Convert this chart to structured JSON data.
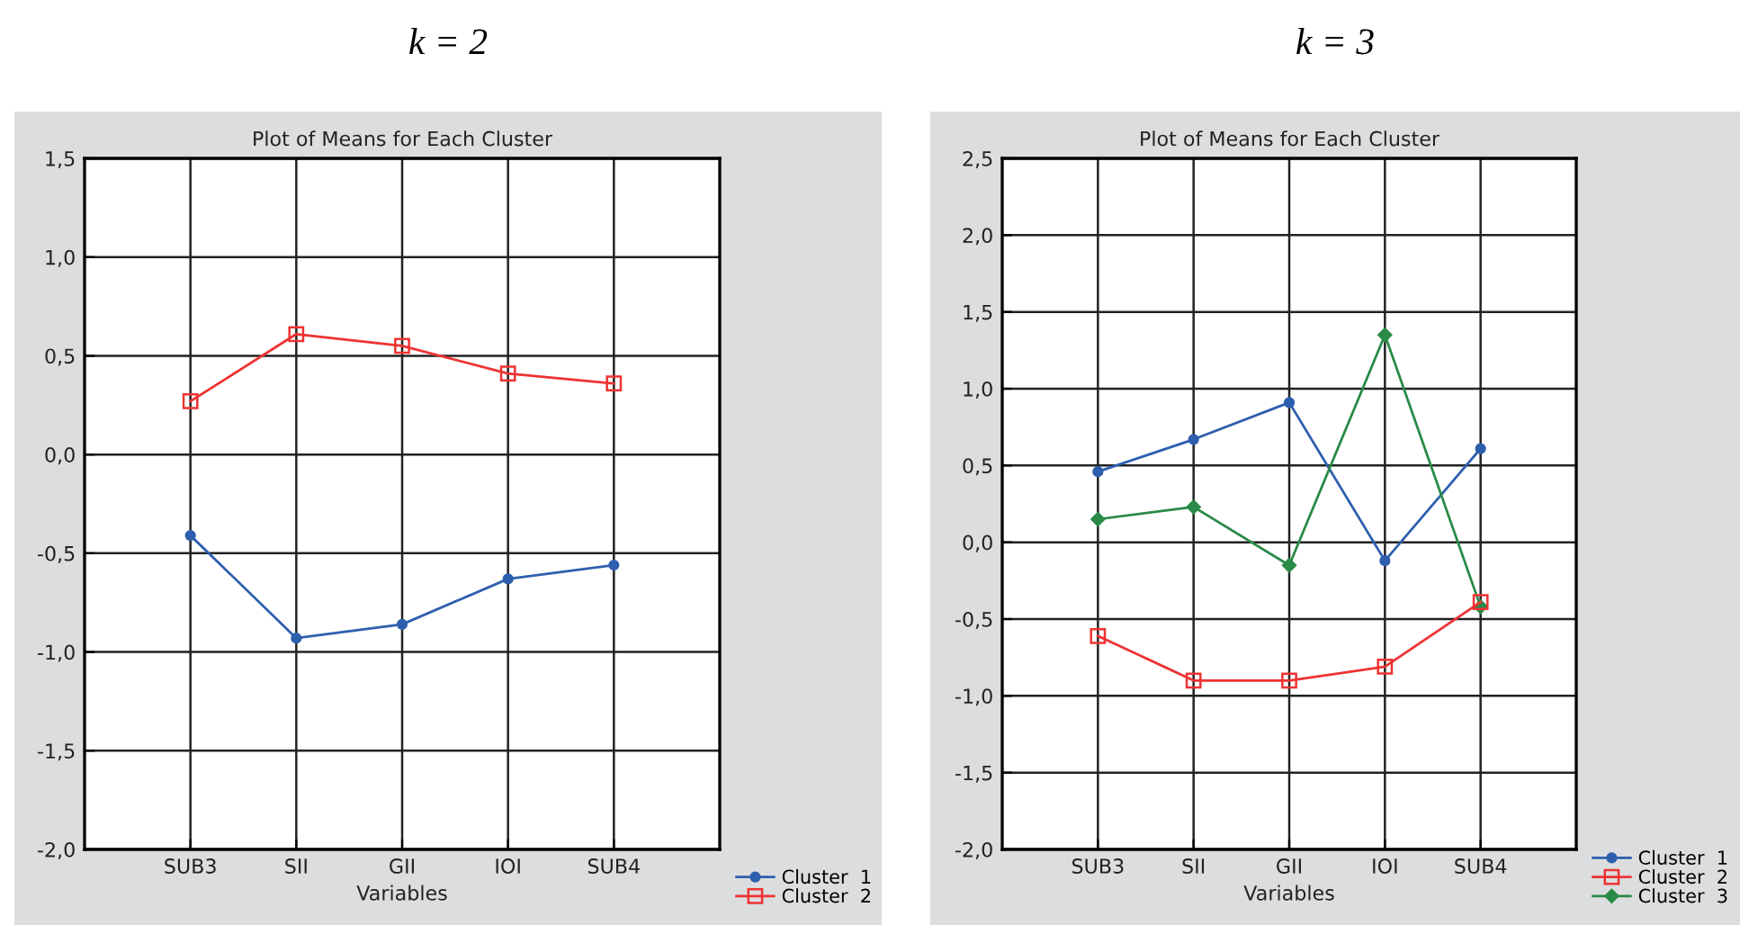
{
  "chart_data": [
    {
      "type": "line",
      "title": "k = 2",
      "subtitle": "Plot of Means for Each Cluster",
      "xlabel": "Variables",
      "categories": [
        "SUB3",
        "SII",
        "GII",
        "IOI",
        "SUB4"
      ],
      "series": [
        {
          "name": "Cluster  1",
          "color": "#2e5fae",
          "marker": "circle",
          "values": [
            -0.41,
            -0.93,
            -0.86,
            -0.63,
            -0.56
          ]
        },
        {
          "name": "Cluster  2",
          "color": "#ee3333",
          "marker": "square",
          "values": [
            0.27,
            0.61,
            0.55,
            0.41,
            0.36
          ]
        }
      ],
      "ylim": [
        -2.0,
        1.5
      ],
      "yticks": [
        {
          "value": -2.0,
          "label": "-2,0"
        },
        {
          "value": -1.5,
          "label": "-1,5"
        },
        {
          "value": -1.0,
          "label": "-1,0"
        },
        {
          "value": -0.5,
          "label": "-0,5"
        },
        {
          "value": 0.0,
          "label": "0,0"
        },
        {
          "value": 0.5,
          "label": "0,5"
        },
        {
          "value": 1.0,
          "label": "1,0"
        },
        {
          "value": 1.5,
          "label": "1,5"
        }
      ],
      "grid": true,
      "legend": "bottom right",
      "line_style": "solid"
    },
    {
      "type": "line",
      "title": "k = 3",
      "subtitle": "Plot of Means for Each Cluster",
      "xlabel": "Variables",
      "categories": [
        "SUB3",
        "SII",
        "GII",
        "IOI",
        "SUB4"
      ],
      "series": [
        {
          "name": "Cluster  1",
          "color": "#2e5fae",
          "marker": "circle",
          "values": [
            0.46,
            0.67,
            0.91,
            -0.12,
            0.61
          ]
        },
        {
          "name": "Cluster  2",
          "color": "#ee3333",
          "marker": "square",
          "values": [
            -0.61,
            -0.9,
            -0.9,
            -0.81,
            -0.39
          ]
        },
        {
          "name": "Cluster  3",
          "color": "#2a8a48",
          "marker": "diamond",
          "values": [
            0.15,
            0.23,
            -0.15,
            1.35,
            -0.42
          ]
        }
      ],
      "ylim": [
        -2.0,
        2.5
      ],
      "yticks": [
        {
          "value": -2.0,
          "label": "-2,0"
        },
        {
          "value": -1.5,
          "label": "-1,5"
        },
        {
          "value": -1.0,
          "label": "-1,0"
        },
        {
          "value": -0.5,
          "label": "-0,5"
        },
        {
          "value": 0.0,
          "label": "0,0"
        },
        {
          "value": 0.5,
          "label": "0,5"
        },
        {
          "value": 1.0,
          "label": "1,0"
        },
        {
          "value": 1.5,
          "label": "1,5"
        },
        {
          "value": 2.0,
          "label": "2,0"
        },
        {
          "value": 2.5,
          "label": "2,5"
        }
      ],
      "grid": true,
      "legend": "bottom right",
      "line_style": "solid"
    }
  ]
}
